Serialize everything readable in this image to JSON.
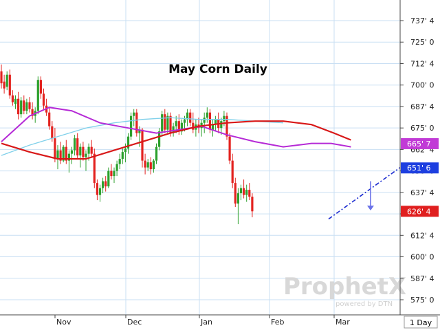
{
  "chart_data": {
    "type": "candlestick",
    "title": "May Corn Daily",
    "x_months": [
      "Nov",
      "Dec",
      "Jan",
      "Feb",
      "Mar"
    ],
    "y_axis_ticks": [
      "737' 4",
      "725' 0",
      "712' 4",
      "700' 0",
      "687' 4",
      "675' 0",
      "662' 4",
      "650' 0",
      "637' 4",
      "625' 0",
      "612' 4",
      "600' 0",
      "587' 4",
      "575' 0"
    ],
    "y_axis_tick_values": [
      737.5,
      725,
      712.5,
      700,
      687.5,
      675,
      662.5,
      650,
      637.5,
      625,
      612.5,
      600,
      587.5,
      575
    ],
    "ylim": [
      565,
      747
    ],
    "grid": true,
    "price_labels": [
      {
        "text": "665' 7",
        "value": 665.875,
        "color": "#c13ad6"
      },
      {
        "text": "651' 6",
        "value": 651.75,
        "color": "#1d3fe0"
      },
      {
        "text": "626' 4",
        "value": 626.5,
        "color": "#e01f1f"
      }
    ],
    "timeframe_label": "1 Day",
    "candles": [
      [
        708,
        712,
        698,
        701
      ],
      [
        702,
        706,
        695,
        698
      ],
      [
        699,
        708,
        697,
        706
      ],
      [
        706,
        709,
        692,
        694
      ],
      [
        694,
        697,
        688,
        690
      ],
      [
        689,
        694,
        686,
        692
      ],
      [
        692,
        696,
        680,
        683
      ],
      [
        683,
        693,
        681,
        691
      ],
      [
        691,
        694,
        683,
        685
      ],
      [
        685,
        692,
        683,
        690
      ],
      [
        690,
        693,
        684,
        686
      ],
      [
        686,
        690,
        680,
        682
      ],
      [
        682,
        687,
        678,
        685
      ],
      [
        685,
        705,
        683,
        703
      ],
      [
        703,
        705,
        692,
        695
      ],
      [
        695,
        698,
        686,
        688
      ],
      [
        688,
        692,
        682,
        684
      ],
      [
        684,
        687,
        674,
        676
      ],
      [
        676,
        679,
        667,
        669
      ],
      [
        669,
        675,
        655,
        657
      ],
      [
        657,
        665,
        651,
        662
      ],
      [
        662,
        667,
        654,
        656
      ],
      [
        656,
        665,
        655,
        664
      ],
      [
        664,
        668,
        654,
        656
      ],
      [
        656,
        662,
        649,
        660
      ],
      [
        660,
        664,
        654,
        662
      ],
      [
        662,
        671,
        659,
        669
      ],
      [
        669,
        672,
        657,
        659
      ],
      [
        659,
        666,
        652,
        664
      ],
      [
        664,
        667,
        656,
        658
      ],
      [
        658,
        662,
        650,
        660
      ],
      [
        660,
        666,
        656,
        664
      ],
      [
        664,
        668,
        658,
        660
      ],
      [
        660,
        663,
        640,
        643
      ],
      [
        643,
        645,
        633,
        636
      ],
      [
        636,
        642,
        632,
        640
      ],
      [
        640,
        646,
        637,
        644
      ],
      [
        644,
        647,
        638,
        641
      ],
      [
        641,
        652,
        640,
        650
      ],
      [
        650,
        654,
        645,
        647
      ],
      [
        647,
        652,
        643,
        650
      ],
      [
        650,
        656,
        647,
        654
      ],
      [
        654,
        660,
        651,
        657
      ],
      [
        657,
        663,
        654,
        661
      ],
      [
        661,
        666,
        655,
        663
      ],
      [
        663,
        672,
        660,
        670
      ],
      [
        670,
        684,
        668,
        682
      ],
      [
        682,
        686,
        676,
        684
      ],
      [
        684,
        686,
        670,
        672
      ],
      [
        672,
        676,
        664,
        674
      ],
      [
        674,
        675,
        652,
        656
      ],
      [
        656,
        660,
        648,
        652
      ],
      [
        652,
        657,
        650,
        655
      ],
      [
        655,
        658,
        648,
        651
      ],
      [
        651,
        657,
        649,
        656
      ],
      [
        656,
        666,
        654,
        664
      ],
      [
        664,
        675,
        662,
        673
      ],
      [
        673,
        685,
        670,
        683
      ],
      [
        683,
        686,
        672,
        674
      ],
      [
        674,
        684,
        672,
        682
      ],
      [
        682,
        684,
        670,
        672
      ],
      [
        672,
        678,
        670,
        676
      ],
      [
        676,
        682,
        672,
        679
      ],
      [
        679,
        683,
        671,
        673
      ],
      [
        673,
        680,
        671,
        678
      ],
      [
        678,
        682,
        673,
        680
      ],
      [
        680,
        686,
        676,
        684
      ],
      [
        684,
        686,
        676,
        678
      ],
      [
        678,
        684,
        672,
        674
      ],
      [
        674,
        680,
        670,
        677
      ],
      [
        677,
        681,
        672,
        675
      ],
      [
        675,
        680,
        670,
        678
      ],
      [
        678,
        684,
        672,
        681
      ],
      [
        681,
        687,
        678,
        684
      ],
      [
        684,
        686,
        672,
        674
      ],
      [
        674,
        680,
        670,
        677
      ],
      [
        677,
        682,
        673,
        680
      ],
      [
        680,
        684,
        672,
        675
      ],
      [
        675,
        681,
        671,
        679
      ],
      [
        679,
        685,
        676,
        682
      ],
      [
        682,
        684,
        668,
        670
      ],
      [
        670,
        672,
        654,
        656
      ],
      [
        656,
        660,
        640,
        643
      ],
      [
        643,
        646,
        629,
        631
      ],
      [
        631,
        640,
        619,
        637
      ],
      [
        637,
        642,
        633,
        640
      ],
      [
        640,
        645,
        634,
        636
      ],
      [
        636,
        642,
        632,
        639
      ],
      [
        639,
        643,
        633,
        635
      ],
      [
        635,
        637,
        623,
        626.5
      ]
    ],
    "ma_magenta": [
      [
        0,
        667
      ],
      [
        10,
        682
      ],
      [
        17,
        687
      ],
      [
        25,
        685
      ],
      [
        35,
        678
      ],
      [
        45,
        675
      ],
      [
        55,
        672
      ],
      [
        63,
        674
      ],
      [
        71,
        676
      ],
      [
        80,
        671
      ],
      [
        90,
        667
      ],
      [
        100,
        664
      ],
      [
        110,
        666
      ],
      [
        117,
        666
      ],
      [
        124,
        664
      ]
    ],
    "ma_red": [
      [
        0,
        666
      ],
      [
        10,
        661
      ],
      [
        20,
        657
      ],
      [
        30,
        657
      ],
      [
        40,
        662
      ],
      [
        50,
        667
      ],
      [
        60,
        672
      ],
      [
        70,
        676
      ],
      [
        80,
        678
      ],
      [
        90,
        679
      ],
      [
        100,
        679
      ],
      [
        110,
        677
      ],
      [
        118,
        672
      ],
      [
        124,
        668
      ]
    ],
    "ma_cyan": [
      [
        0,
        659
      ],
      [
        10,
        665
      ],
      [
        20,
        670
      ],
      [
        30,
        675
      ],
      [
        40,
        678
      ],
      [
        50,
        680
      ],
      [
        60,
        681
      ],
      [
        70,
        680
      ],
      [
        80,
        680
      ],
      [
        90,
        679
      ],
      [
        100,
        678
      ]
    ],
    "trendline": [
      [
        582,
        622
      ],
      [
        640,
        652
      ]
    ],
    "arrow": {
      "from": 644,
      "to": 627
    }
  },
  "watermark": {
    "brand": "ProphetX",
    "sub": "powered by DTN"
  }
}
